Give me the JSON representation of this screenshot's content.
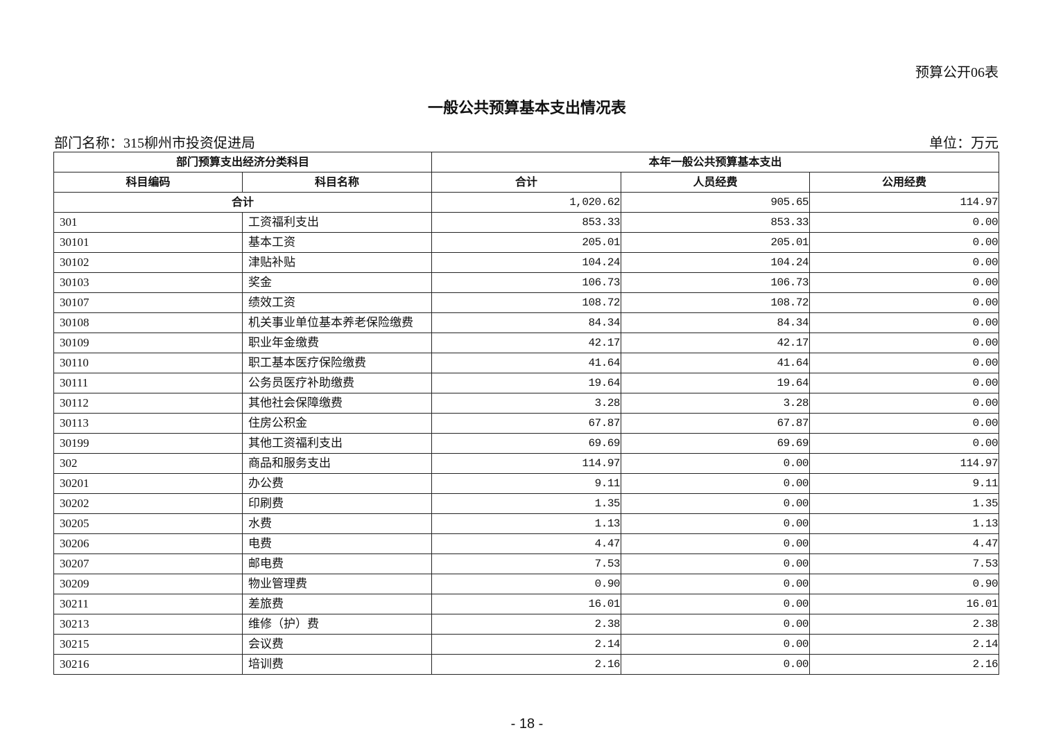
{
  "form_number": "预算公开06表",
  "title": "一般公共预算基本支出情况表",
  "department_label": "部门名称：315柳州市投资促进局",
  "unit_label": "单位：万元",
  "table": {
    "group_headers": [
      "部门预算支出经济分类科目",
      "本年一般公共预算基本支出"
    ],
    "columns": [
      "科目编码",
      "科目名称",
      "合计",
      "人员经费",
      "公用经费"
    ],
    "total": {
      "label": "合计",
      "total": "1,020.62",
      "personnel": "905.65",
      "public": "114.97"
    },
    "rows": [
      {
        "code": "301",
        "name": "工资福利支出",
        "total": "853.33",
        "personnel": "853.33",
        "public": "0.00"
      },
      {
        "code": "30101",
        "name": "基本工资",
        "total": "205.01",
        "personnel": "205.01",
        "public": "0.00"
      },
      {
        "code": "30102",
        "name": "津贴补贴",
        "total": "104.24",
        "personnel": "104.24",
        "public": "0.00"
      },
      {
        "code": "30103",
        "name": "奖金",
        "total": "106.73",
        "personnel": "106.73",
        "public": "0.00"
      },
      {
        "code": "30107",
        "name": "绩效工资",
        "total": "108.72",
        "personnel": "108.72",
        "public": "0.00"
      },
      {
        "code": "30108",
        "name": "机关事业单位基本养老保险缴费",
        "total": "84.34",
        "personnel": "84.34",
        "public": "0.00"
      },
      {
        "code": "30109",
        "name": "职业年金缴费",
        "total": "42.17",
        "personnel": "42.17",
        "public": "0.00"
      },
      {
        "code": "30110",
        "name": "职工基本医疗保险缴费",
        "total": "41.64",
        "personnel": "41.64",
        "public": "0.00"
      },
      {
        "code": "30111",
        "name": "公务员医疗补助缴费",
        "total": "19.64",
        "personnel": "19.64",
        "public": "0.00"
      },
      {
        "code": "30112",
        "name": "其他社会保障缴费",
        "total": "3.28",
        "personnel": "3.28",
        "public": "0.00"
      },
      {
        "code": "30113",
        "name": "住房公积金",
        "total": "67.87",
        "personnel": "67.87",
        "public": "0.00"
      },
      {
        "code": "30199",
        "name": "其他工资福利支出",
        "total": "69.69",
        "personnel": "69.69",
        "public": "0.00"
      },
      {
        "code": "302",
        "name": "商品和服务支出",
        "total": "114.97",
        "personnel": "0.00",
        "public": "114.97"
      },
      {
        "code": "30201",
        "name": "办公费",
        "total": "9.11",
        "personnel": "0.00",
        "public": "9.11"
      },
      {
        "code": "30202",
        "name": "印刷费",
        "total": "1.35",
        "personnel": "0.00",
        "public": "1.35"
      },
      {
        "code": "30205",
        "name": "水费",
        "total": "1.13",
        "personnel": "0.00",
        "public": "1.13"
      },
      {
        "code": "30206",
        "name": "电费",
        "total": "4.47",
        "personnel": "0.00",
        "public": "4.47"
      },
      {
        "code": "30207",
        "name": "邮电费",
        "total": "7.53",
        "personnel": "0.00",
        "public": "7.53"
      },
      {
        "code": "30209",
        "name": "物业管理费",
        "total": "0.90",
        "personnel": "0.00",
        "public": "0.90"
      },
      {
        "code": "30211",
        "name": "差旅费",
        "total": "16.01",
        "personnel": "0.00",
        "public": "16.01"
      },
      {
        "code": "30213",
        "name": "维修（护）费",
        "total": "2.38",
        "personnel": "0.00",
        "public": "2.38"
      },
      {
        "code": "30215",
        "name": "会议费",
        "total": "2.14",
        "personnel": "0.00",
        "public": "2.14"
      },
      {
        "code": "30216",
        "name": "培训费",
        "total": "2.16",
        "personnel": "0.00",
        "public": "2.16"
      }
    ]
  },
  "page_number": "- 18 -"
}
